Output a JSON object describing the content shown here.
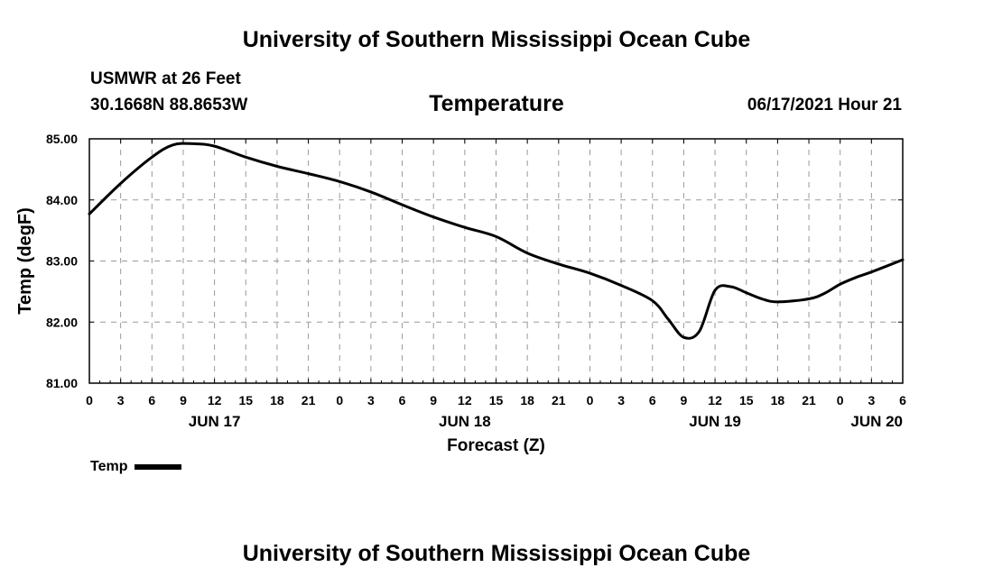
{
  "header": {
    "title_top": "University of Southern Mississippi Ocean Cube",
    "station": "USMWR at 26 Feet",
    "coordinates": "30.1668N  88.8653W",
    "chart_title": "Temperature",
    "timestamp": "06/17/2021 Hour 21",
    "title_bottom": "University of Southern Mississippi Ocean Cube"
  },
  "legend": {
    "label": "Temp"
  },
  "chart_data": {
    "type": "line",
    "title": "Temperature",
    "xlabel": "Forecast (Z)",
    "ylabel": "Temp (degF)",
    "ylim": [
      81,
      85
    ],
    "xlim": [
      0,
      78
    ],
    "grid": true,
    "y_ticks": [
      "81.00",
      "82.00",
      "83.00",
      "84.00",
      "85.00"
    ],
    "x_ticks": [
      "0",
      "3",
      "6",
      "9",
      "12",
      "15",
      "18",
      "21",
      "0",
      "3",
      "6",
      "9",
      "12",
      "15",
      "18",
      "21",
      "0",
      "3",
      "6",
      "9",
      "12",
      "15",
      "18",
      "21",
      "0",
      "3",
      "6"
    ],
    "date_labels": [
      {
        "label": "JUN 17",
        "x": 12
      },
      {
        "label": "JUN 18",
        "x": 36
      },
      {
        "label": "JUN 19",
        "x": 60
      },
      {
        "label": "JUN 20",
        "x": 78
      }
    ],
    "series": [
      {
        "name": "Temp",
        "color": "#000000",
        "x": [
          0,
          3,
          6,
          8,
          10,
          12,
          15,
          18,
          21,
          24,
          27,
          30,
          33,
          36,
          39,
          42,
          45,
          48,
          51,
          54,
          55.5,
          57,
          58.5,
          60,
          61.5,
          63,
          64.5,
          66,
          69,
          70.5,
          72,
          73.5,
          75,
          78
        ],
        "y": [
          83.77,
          84.27,
          84.7,
          84.9,
          84.92,
          84.88,
          84.7,
          84.55,
          84.43,
          84.3,
          84.13,
          83.92,
          83.72,
          83.55,
          83.4,
          83.13,
          82.95,
          82.8,
          82.6,
          82.35,
          82.05,
          81.75,
          81.85,
          82.52,
          82.58,
          82.48,
          82.38,
          82.33,
          82.38,
          82.47,
          82.62,
          82.73,
          82.82,
          83.02
        ]
      }
    ]
  }
}
